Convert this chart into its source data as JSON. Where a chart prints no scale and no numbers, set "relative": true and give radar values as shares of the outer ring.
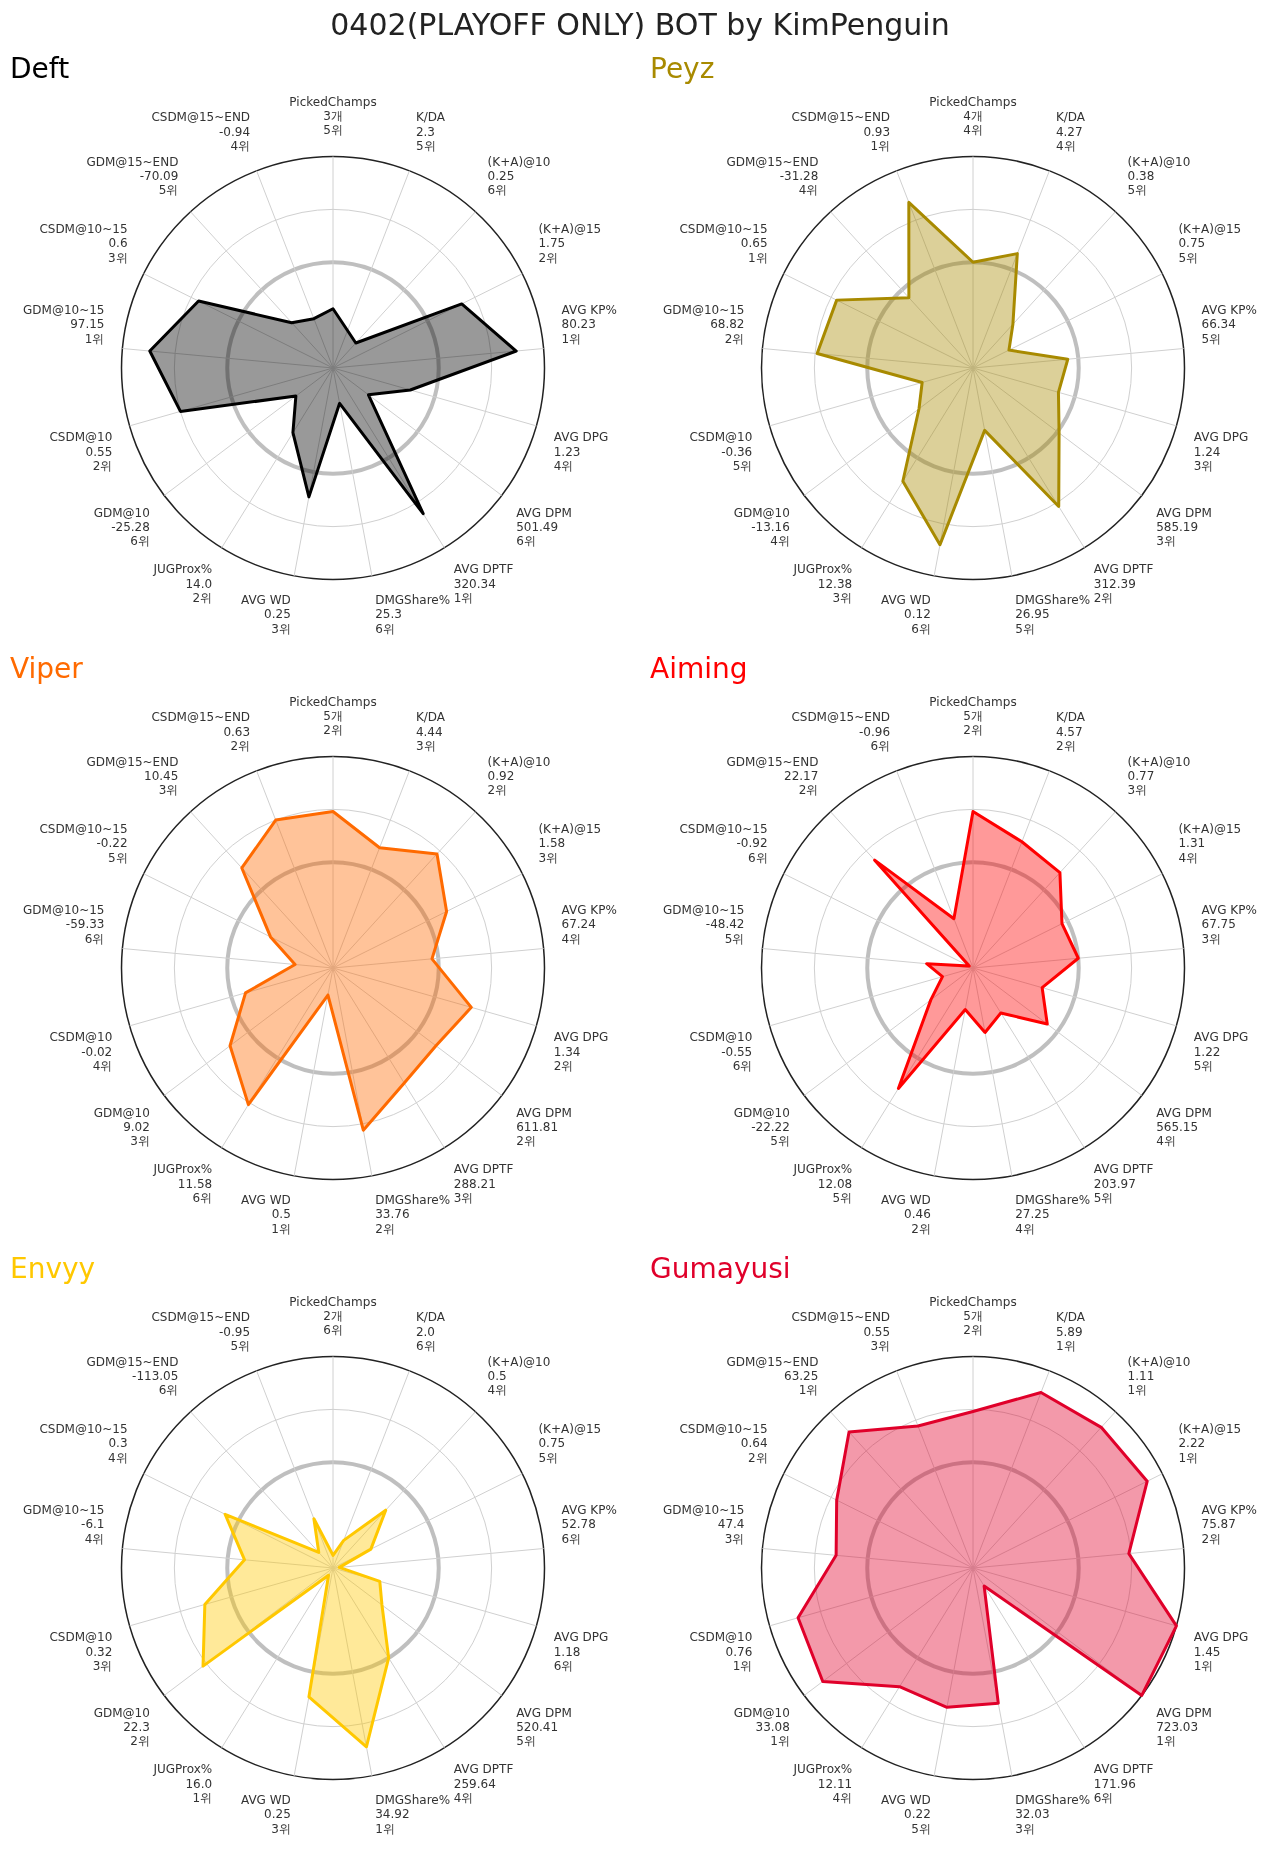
{
  "chart_data": [
    {
      "type": "radar",
      "title": "Deft",
      "annotations": [
        "0402(PLAYOFF ONLY) BOT by KimPenguin"
      ],
      "relative": true,
      "grid": true,
      "marker": "none",
      "categories": [
        "PickedChamps\n3개\n5위",
        "K/DA\n2.3\n5위",
        "(K+A)@10\n0.25\n6위",
        "(K+A)@15\n1.75\n2위",
        "AVG KP%\n80.23\n1위",
        "AVG DPG\n1.23\n4위",
        "AVG DPM\n501.49\n6위",
        "AVG DPTF\n320.34\n1위",
        "DMGShare%\n25.3\n6위",
        "AVG WD\n0.25\n3위",
        "JUGProx%\n14.0\n2위",
        "GDM@10\n-25.28\n6위",
        "CSDM@10\n0.55\n2위",
        "GDM@10~15\n97.15\n1위",
        "CSDM@10~15\n0.6\n3위",
        "GDM@15~END\n-70.09\n5위",
        "CSDM@15~END\n-0.94\n4위"
      ],
      "series": [
        {
          "color": "#000000",
          "values": [
            0.28,
            0.19,
            0.16,
            0.68,
            0.87,
            0.38,
            0.21,
            0.81,
            0.17,
            0.62,
            0.36,
            0.22,
            0.75,
            0.87,
            0.71,
            0.29,
            0.25
          ]
        }
      ]
    },
    {
      "type": "radar",
      "title": "Peyz",
      "relative": true,
      "grid": true,
      "marker": "none",
      "categories": [
        "PickedChamps\n4개\n4위",
        "K/DA\n4.27\n4위",
        "(K+A)@10\n0.38\n5위",
        "(K+A)@15\n0.75\n5위",
        "AVG KP%\n66.34\n5위",
        "AVG DPG\n1.24\n3위",
        "AVG DPM\n585.19\n3위",
        "AVG DPTF\n312.39\n2위",
        "DMGShare%\n26.95\n5위",
        "AVG WD\n0.12\n6위",
        "JUGProx%\n12.38\n3위",
        "GDM@10\n-13.16\n4위",
        "CSDM@10\n-0.36\n5위",
        "GDM@10~15\n68.82\n2위",
        "CSDM@10~15\n0.65\n1위",
        "GDM@15~END\n-31.28\n4위",
        "CSDM@15~END\n0.93\n1위"
      ],
      "series": [
        {
          "color": "#a88a00",
          "values": [
            0.5,
            0.58,
            0.28,
            0.19,
            0.45,
            0.42,
            0.51,
            0.77,
            0.3,
            0.85,
            0.63,
            0.32,
            0.25,
            0.74,
            0.72,
            0.45,
            0.84
          ]
        }
      ]
    },
    {
      "type": "radar",
      "title": "Viper",
      "relative": true,
      "grid": true,
      "marker": "none",
      "categories": [
        "PickedChamps\n5개\n2위",
        "K/DA\n4.44\n3위",
        "(K+A)@10\n0.92\n2위",
        "(K+A)@15\n1.58\n3위",
        "AVG KP%\n67.24\n4위",
        "AVG DPG\n1.34\n2위",
        "AVG DPM\n611.81\n2위",
        "AVG DPTF\n288.21\n3위",
        "DMGShare%\n33.76\n2위",
        "AVG WD\n0.5\n1위",
        "JUGProx%\n11.58\n6위",
        "GDM@10\n9.02\n3위",
        "CSDM@10\n-0.02\n4위",
        "GDM@10~15\n-59.33\n6위",
        "CSDM@10~15\n-0.22\n5위",
        "GDM@15~END\n10.45\n3위",
        "CSDM@15~END\n0.63\n2위"
      ],
      "series": [
        {
          "color": "#ff6a00",
          "values": [
            0.74,
            0.61,
            0.73,
            0.6,
            0.47,
            0.68,
            0.61,
            0.64,
            0.78,
            0.13,
            0.76,
            0.61,
            0.43,
            0.18,
            0.33,
            0.64,
            0.75
          ]
        }
      ]
    },
    {
      "type": "radar",
      "title": "Aiming",
      "relative": true,
      "grid": true,
      "marker": "none",
      "categories": [
        "PickedChamps\n5개\n2위",
        "K/DA\n4.57\n2위",
        "(K+A)@10\n0.77\n3위",
        "(K+A)@15\n1.31\n4위",
        "AVG KP%\n67.75\n3위",
        "AVG DPG\n1.22\n5위",
        "AVG DPM\n565.15\n4위",
        "AVG DPTF\n203.97\n5위",
        "DMGShare%\n27.25\n4위",
        "AVG WD\n0.46\n2위",
        "JUGProx%\n12.08\n5위",
        "GDM@10\n-22.22\n5위",
        "CSDM@10\n-0.55\n6위",
        "GDM@10~15\n-48.42\n5위",
        "CSDM@10~15\n-0.92\n6위",
        "GDM@15~END\n22.17\n2위",
        "CSDM@15~END\n-0.96\n6위"
      ],
      "series": [
        {
          "color": "#ff0000",
          "values": [
            0.74,
            0.64,
            0.61,
            0.47,
            0.5,
            0.34,
            0.44,
            0.25,
            0.31,
            0.2,
            0.67,
            0.25,
            0.15,
            0.22,
            0.02,
            0.69,
            0.25
          ]
        }
      ]
    },
    {
      "type": "radar",
      "title": "Envyy",
      "relative": true,
      "grid": true,
      "marker": "none",
      "categories": [
        "PickedChamps\n2개\n6위",
        "K/DA\n2.0\n6위",
        "(K+A)@10\n0.5\n4위",
        "(K+A)@15\n0.75\n5위",
        "AVG KP%\n52.78\n6위",
        "AVG DPG\n1.18\n6위",
        "AVG DPM\n520.41\n5위",
        "AVG DPTF\n259.64\n4위",
        "DMGShare%\n34.92\n1위",
        "AVG WD\n0.25\n3위",
        "JUGProx%\n16.0\n1위",
        "GDM@10\n22.3\n2위",
        "CSDM@10\n0.32\n3위",
        "GDM@10~15\n-6.1\n4위",
        "CSDM@10~15\n0.3\n4위",
        "GDM@15~END\n-113.05\n6위",
        "CSDM@15~END\n-0.95\n5위"
      ],
      "series": [
        {
          "color": "#ffc800",
          "values": [
            0.06,
            0.14,
            0.37,
            0.2,
            0.03,
            0.23,
            0.29,
            0.5,
            0.86,
            0.62,
            0.04,
            0.77,
            0.63,
            0.42,
            0.57,
            0.1,
            0.25
          ]
        }
      ]
    },
    {
      "type": "radar",
      "title": "Gumayusi",
      "relative": true,
      "grid": true,
      "marker": "none",
      "categories": [
        "PickedChamps\n5개\n2위",
        "K/DA\n5.89\n1위",
        "(K+A)@10\n1.11\n1위",
        "(K+A)@15\n2.22\n1위",
        "AVG KP%\n75.87\n2위",
        "AVG DPG\n1.45\n1위",
        "AVG DPM\n723.03\n1위",
        "AVG DPTF\n171.96\n6위",
        "DMGShare%\n32.03\n3위",
        "AVG WD\n0.22\n5위",
        "JUGProx%\n12.11\n4위",
        "GDM@10\n33.08\n1위",
        "CSDM@10\n0.76\n1위",
        "GDM@10~15\n47.4\n3위",
        "CSDM@10~15\n0.64\n2위",
        "GDM@15~END\n63.25\n1위",
        "CSDM@15~END\n0.55\n3위"
      ],
      "series": [
        {
          "color": "#e0002a",
          "values": [
            0.74,
            0.89,
            0.9,
            0.92,
            0.74,
            1,
            1,
            0.1,
            0.65,
            0.67,
            0.66,
            0.89,
            0.86,
            0.65,
            0.72,
            0.87,
            0.72
          ]
        }
      ]
    }
  ]
}
